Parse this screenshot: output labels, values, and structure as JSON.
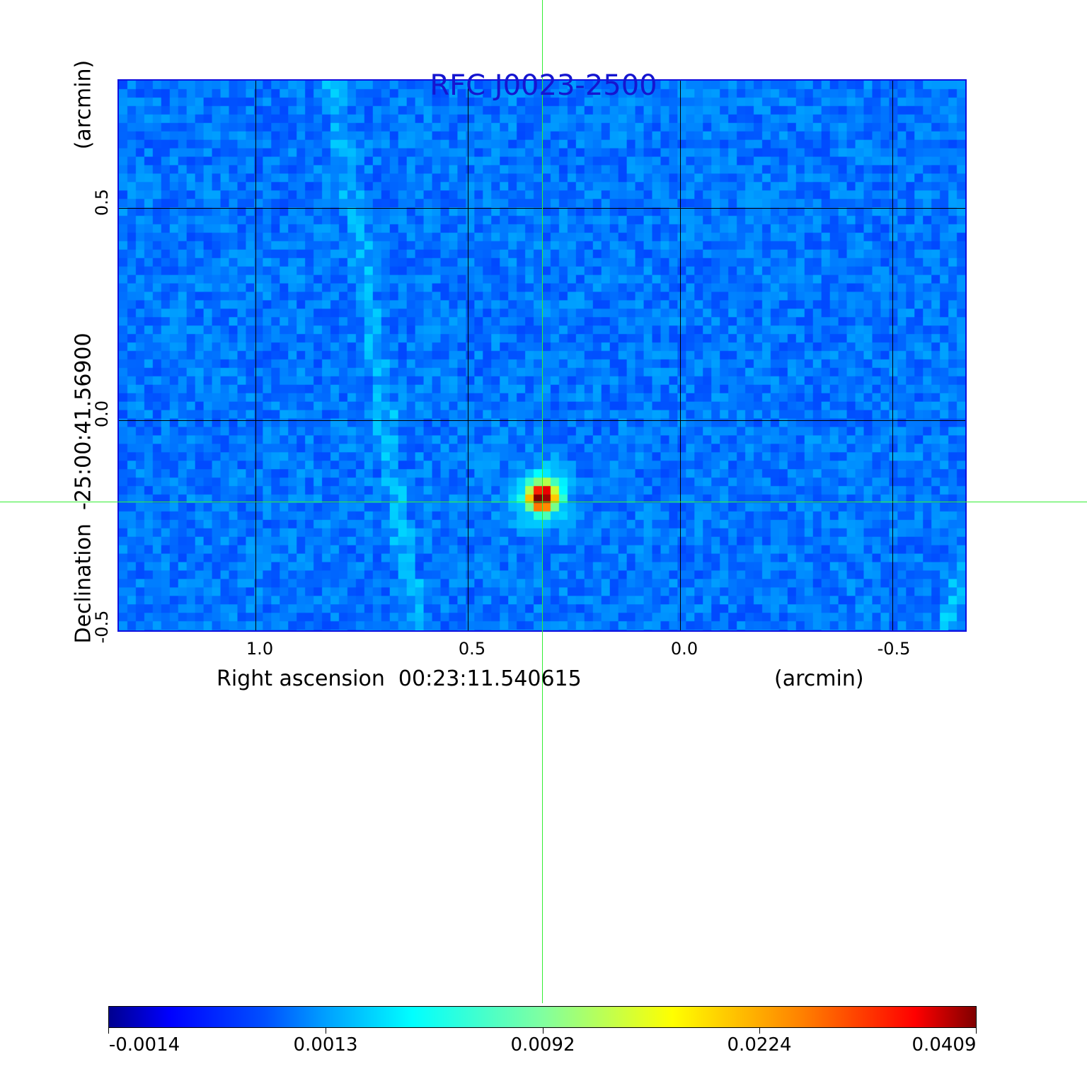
{
  "figure": {
    "title": "RFC J0023-2500",
    "x_axis": {
      "label": "Right ascension  00:23:11.540615",
      "unit": "(arcmin)",
      "ticks": [
        "1.0",
        "0.5",
        "0.0",
        "-0.5"
      ]
    },
    "y_axis": {
      "label": "Declination  -25:00:41.56900",
      "unit": "(arcmin)",
      "ticks": [
        "0.5",
        "0.0",
        "-0.5"
      ]
    },
    "colorbar": {
      "ticks": [
        "-0.0014",
        "0.0013",
        "0.0092",
        "0.0224",
        "0.0409"
      ],
      "colormap": "jet"
    },
    "colors": {
      "title": "#1515d0",
      "frame": "#1010e0",
      "crosshair": "#33ee33"
    }
  }
}
